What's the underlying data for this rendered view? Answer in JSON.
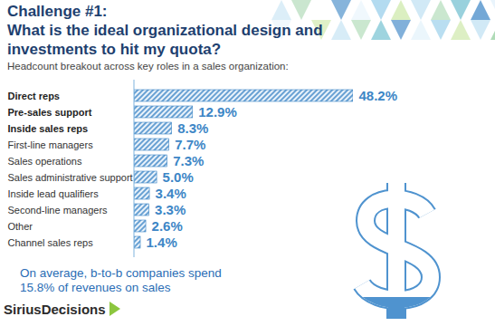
{
  "chart_data": {
    "type": "bar",
    "orientation": "horizontal",
    "title": [
      "Challenge #1:",
      "What is the ideal organizational design and investments to hit my quota?"
    ],
    "subtitle": "Headcount breakout across key roles in a sales organization:",
    "categories": [
      "Direct reps",
      "Pre-sales support",
      "Inside sales reps",
      "First-line managers",
      "Sales operations",
      "Sales administrative support",
      "Inside lead qualifiers",
      "Second-line managers",
      "Other",
      "Channel sales reps"
    ],
    "values": [
      48.2,
      12.9,
      8.3,
      7.7,
      7.3,
      5.0,
      3.4,
      3.3,
      2.6,
      1.4
    ],
    "value_labels": [
      "48.2%",
      "12.9%",
      "8.3%",
      "7.7%",
      "7.3%",
      "5.0%",
      "3.4%",
      "3.3%",
      "2.6%",
      "1.4%"
    ],
    "color": "#3d86c6",
    "data_labels": true,
    "tick_labels": "y",
    "annotation": [
      "On average, b-to-b companies spend",
      "15.8% of revenues on sales"
    ],
    "source": "SiriusDecisions"
  }
}
